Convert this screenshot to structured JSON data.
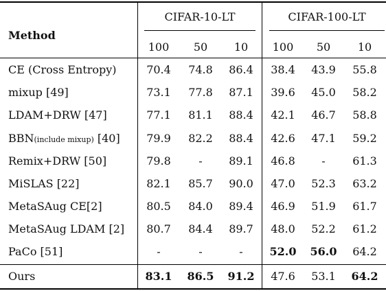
{
  "header": {
    "method_label": "Method",
    "group1": "CIFAR-10-LT",
    "group2": "CIFAR-100-LT",
    "imbalance": [
      "100",
      "50",
      "10",
      "100",
      "50",
      "10"
    ]
  },
  "rows": [
    {
      "method": "CE (Cross Entropy)",
      "suffix": "",
      "ref": "",
      "values": [
        "70.4",
        "74.8",
        "86.4",
        "38.4",
        "43.9",
        "55.8"
      ],
      "bold": [
        false,
        false,
        false,
        false,
        false,
        false
      ]
    },
    {
      "method": "mixup [49]",
      "suffix": "",
      "ref": "",
      "values": [
        "73.1",
        "77.8",
        "87.1",
        "39.6",
        "45.0",
        "58.2"
      ],
      "bold": [
        false,
        false,
        false,
        false,
        false,
        false
      ]
    },
    {
      "method": "LDAM+DRW [47]",
      "suffix": "",
      "ref": "",
      "values": [
        "77.1",
        "81.1",
        "88.4",
        "42.1",
        "46.7",
        "58.8"
      ],
      "bold": [
        false,
        false,
        false,
        false,
        false,
        false
      ]
    },
    {
      "method": "BBN",
      "suffix": "(include mixup)",
      "ref": " [40]",
      "values": [
        "79.9",
        "82.2",
        "88.4",
        "42.6",
        "47.1",
        "59.2"
      ],
      "bold": [
        false,
        false,
        false,
        false,
        false,
        false
      ]
    },
    {
      "method": "Remix+DRW [50]",
      "suffix": "",
      "ref": "",
      "values": [
        "79.8",
        "-",
        "89.1",
        "46.8",
        "-",
        "61.3"
      ],
      "bold": [
        false,
        false,
        false,
        false,
        false,
        false
      ]
    },
    {
      "method": "MiSLAS [22]",
      "suffix": "",
      "ref": "",
      "values": [
        "82.1",
        "85.7",
        "90.0",
        "47.0",
        "52.3",
        "63.2"
      ],
      "bold": [
        false,
        false,
        false,
        false,
        false,
        false
      ]
    },
    {
      "method": "MetaSAug CE[2]",
      "suffix": "",
      "ref": "",
      "values": [
        "80.5",
        "84.0",
        "89.4",
        "46.9",
        "51.9",
        "61.7"
      ],
      "bold": [
        false,
        false,
        false,
        false,
        false,
        false
      ]
    },
    {
      "method": "MetaSAug LDAM [2]",
      "suffix": "",
      "ref": "",
      "values": [
        "80.7",
        "84.4",
        "89.7",
        "48.0",
        "52.2",
        "61.2"
      ],
      "bold": [
        false,
        false,
        false,
        false,
        false,
        false
      ]
    },
    {
      "method": "PaCo [51]",
      "suffix": "",
      "ref": "",
      "values": [
        "-",
        "-",
        "-",
        "52.0",
        "56.0",
        "64.2"
      ],
      "bold": [
        false,
        false,
        false,
        true,
        true,
        false
      ]
    },
    {
      "method": "Ours",
      "suffix": "",
      "ref": "",
      "values": [
        "83.1",
        "86.5",
        "91.2",
        "47.6",
        "53.1",
        "64.2"
      ],
      "bold": [
        true,
        true,
        true,
        false,
        false,
        true
      ]
    }
  ]
}
